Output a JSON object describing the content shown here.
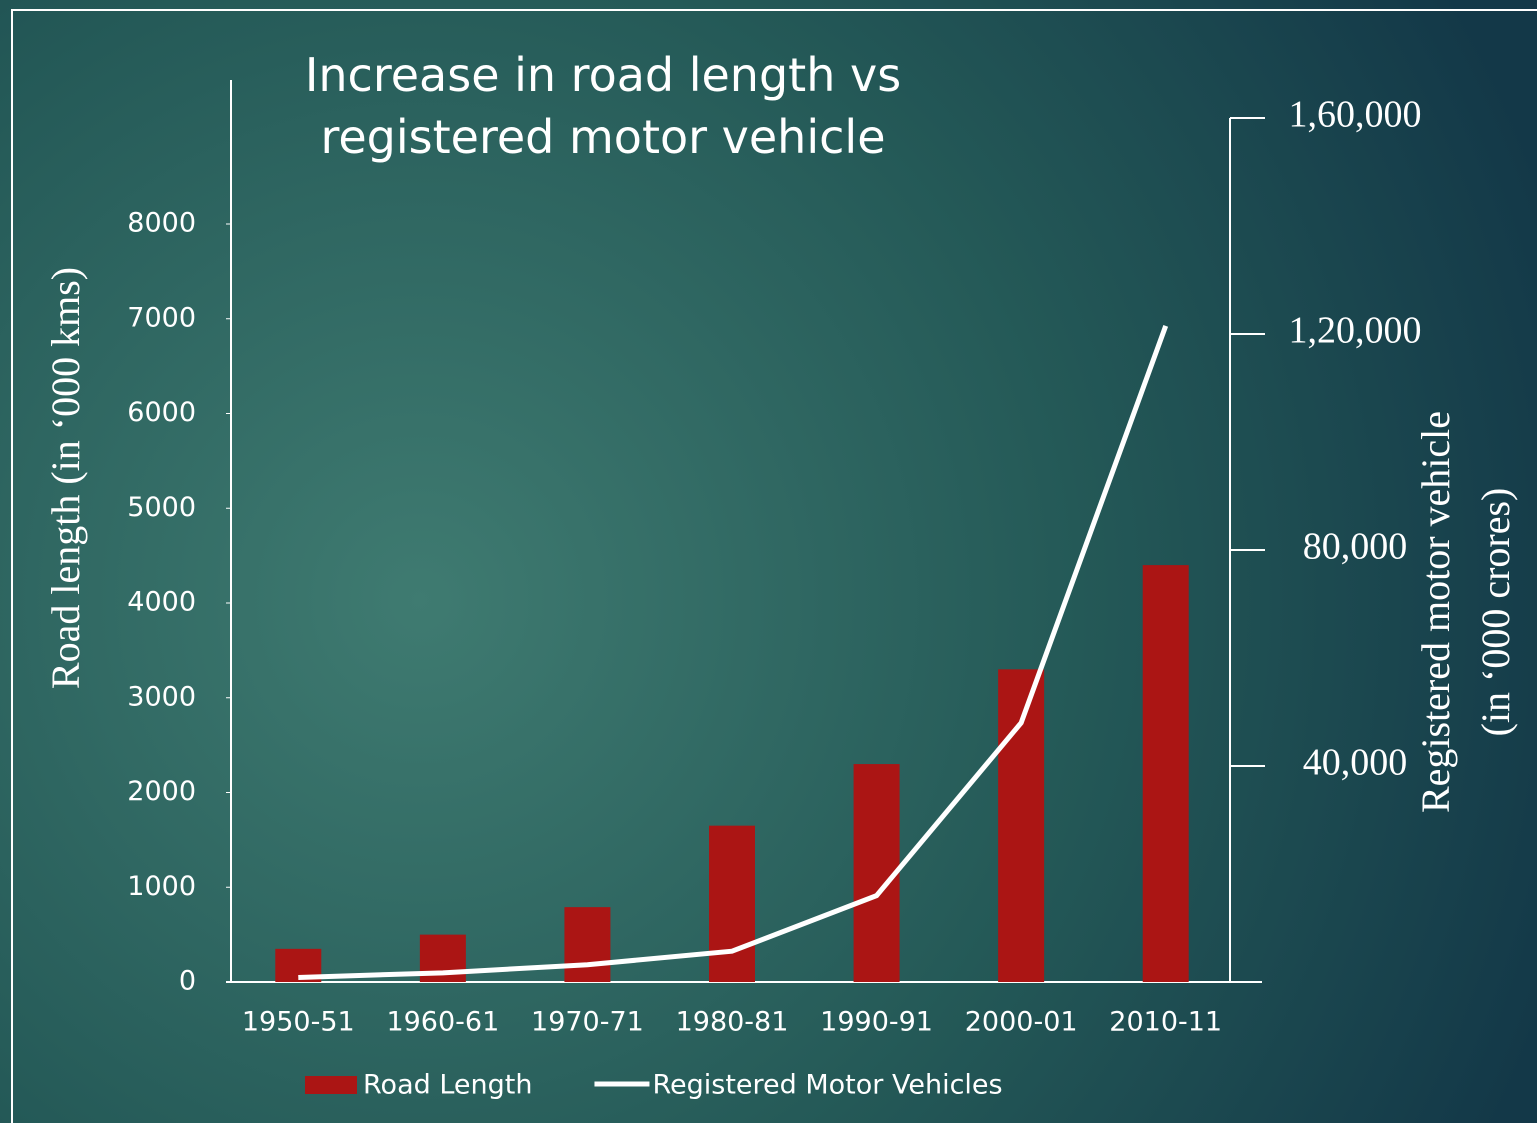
{
  "chart_data": {
    "type": "bar-line",
    "title": "Increase in road length vs registered motor vehicle",
    "ylabel": "Road length (in ‘000 kms)",
    "y2label": [
      "Registered motor vehicle",
      "(in ‘000 crores)"
    ],
    "categories": [
      "1950-51",
      "1960-61",
      "1970-71",
      "1980-81",
      "1990-91",
      "2000-01",
      "2010-11"
    ],
    "series": [
      {
        "name": "Road Length",
        "type": "bar",
        "color": "#ab1514",
        "values": [
          350,
          500,
          790,
          1650,
          2300,
          3300,
          4400
        ]
      },
      {
        "name": "Registered Motor Vehicles",
        "type": "line",
        "axis": "y2",
        "color": "#ffffff",
        "values": [
          840,
          1700,
          3200,
          5700,
          16000,
          48000,
          121500
        ]
      }
    ],
    "ylim": [
      0,
      8000
    ],
    "yticks": [
      0,
      1000,
      2000,
      3000,
      4000,
      5000,
      6000,
      7000,
      8000
    ],
    "y2lim": [
      0,
      160000
    ],
    "y2ticks": [
      {
        "value": 40000,
        "label": "40,000"
      },
      {
        "value": 80000,
        "label": "80,000"
      },
      {
        "value": 120000,
        "label": "1,20,000"
      },
      {
        "value": 160000,
        "label": "1,60,000"
      }
    ],
    "legend": "bottom"
  }
}
